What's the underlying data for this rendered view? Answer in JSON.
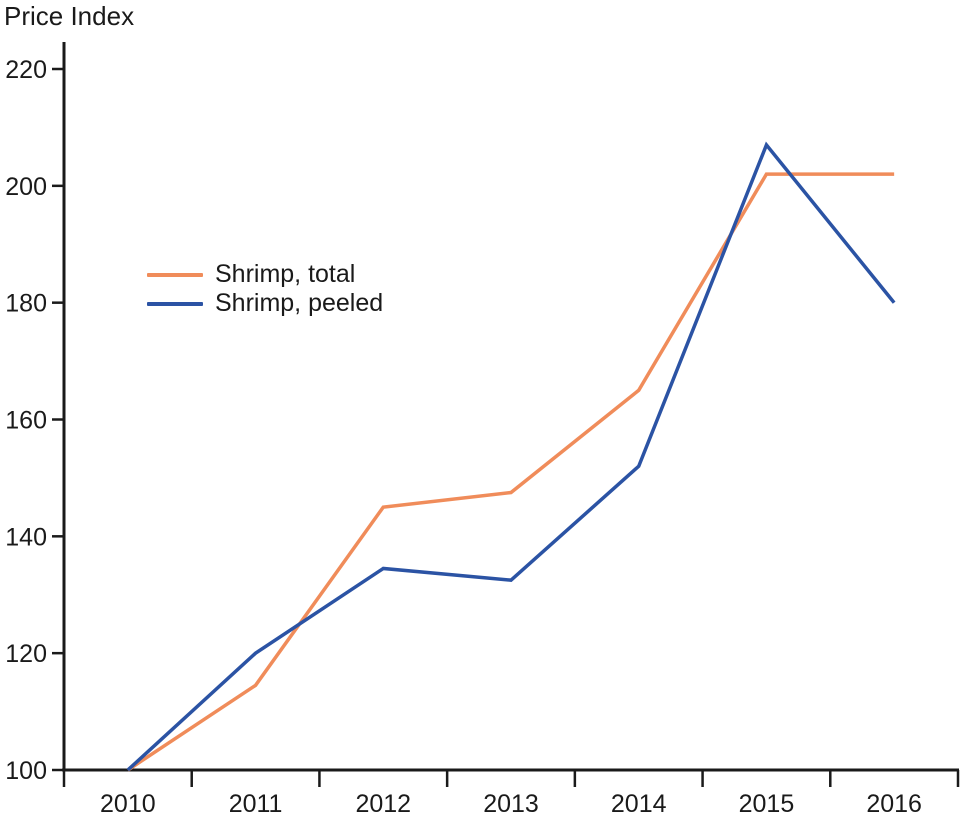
{
  "title": "Price Index",
  "colors": {
    "series_total": "#F08C5A",
    "series_peeled": "#2B53A4",
    "axis": "#1A1A1A",
    "text": "#1A1A1A",
    "background": "#FFFFFF"
  },
  "legend": {
    "items": [
      "Shrimp, total",
      "Shrimp, peeled"
    ]
  },
  "chart_data": {
    "type": "line",
    "title": "Price Index",
    "x": [
      "2010",
      "2011",
      "2012",
      "2013",
      "2014",
      "2015",
      "2016"
    ],
    "series": [
      {
        "name": "Shrimp, total",
        "color": "#F08C5A",
        "values": [
          100,
          114.5,
          145,
          147.5,
          165,
          202,
          202
        ]
      },
      {
        "name": "Shrimp, peeled",
        "color": "#2B53A4",
        "values": [
          100,
          120,
          134.5,
          132.5,
          152,
          207,
          180
        ]
      }
    ],
    "xlabel": "",
    "ylabel": "Price Index",
    "ylim": [
      100,
      220
    ],
    "yticks": [
      100,
      120,
      140,
      160,
      180,
      200,
      220
    ],
    "grid": false,
    "legend_position": "inside-upper-left"
  }
}
